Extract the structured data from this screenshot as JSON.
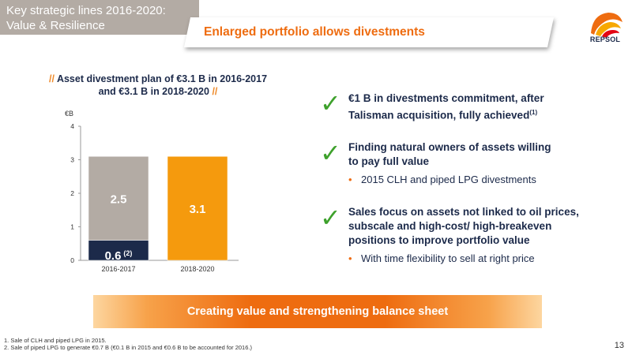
{
  "header": {
    "title_line1": "Key strategic lines 2016-2020:",
    "title_line2": "Value & Resilience"
  },
  "banner": {
    "text": "Enlarged portfolio allows divestments"
  },
  "logo": {
    "text": "REPSOL",
    "colors": [
      "#ee6c10",
      "#f7a800",
      "#e30613"
    ]
  },
  "chart": {
    "title_line1": "Asset divestment plan of €3.1 B in 2016-2017",
    "title_line2": "and €3.1 B in 2018-2020",
    "slashes": "//",
    "unit": "€B"
  },
  "chart_data": {
    "type": "bar",
    "stacked": true,
    "categories": [
      "2016-2017",
      "2018-2020"
    ],
    "ylim": [
      0,
      4
    ],
    "yticks": [
      0,
      1,
      2,
      3,
      4
    ],
    "ylabel": "€B",
    "bars": [
      {
        "category": "2016-2017",
        "segments": [
          {
            "value": 0.6,
            "label": "0.6",
            "sup": "(2)",
            "color": "#1c2a4a"
          },
          {
            "value": 2.5,
            "label": "2.5",
            "color": "#b3aba4"
          }
        ]
      },
      {
        "category": "2018-2020",
        "segments": [
          {
            "value": 3.1,
            "label": "3.1",
            "color": "#f59a0d"
          }
        ]
      }
    ],
    "grid": false,
    "legend": "none"
  },
  "bullets": [
    {
      "heading_line1": "€1 B in divestments commitment, after",
      "heading_line2": "Talisman acquisition, fully achieved",
      "sup": "(1)"
    },
    {
      "heading_line1": "Finding natural owners of assets willing",
      "heading_line2": "to pay full value",
      "sub": "2015 CLH and piped LPG divestments"
    },
    {
      "heading_line1": "Sales focus on assets not linked to oil prices,",
      "heading_line2": "subscale and high-cost/ high-breakeven",
      "heading_line3": "positions to improve portfolio value",
      "sub": "With time flexibility to sell at right price"
    }
  ],
  "bullet_dot": "•",
  "check_icon": "✓",
  "bottom_bar": {
    "text": "Creating value and strengthening balance sheet"
  },
  "footnotes": [
    "1. Sale of CLH and piped LPG in 2015.",
    "2. Sale of piped LPG to generate €0.7 B (€0.1 B in 2015 and €0.6 B to be accounted for 2016.)"
  ],
  "page_number": "13"
}
